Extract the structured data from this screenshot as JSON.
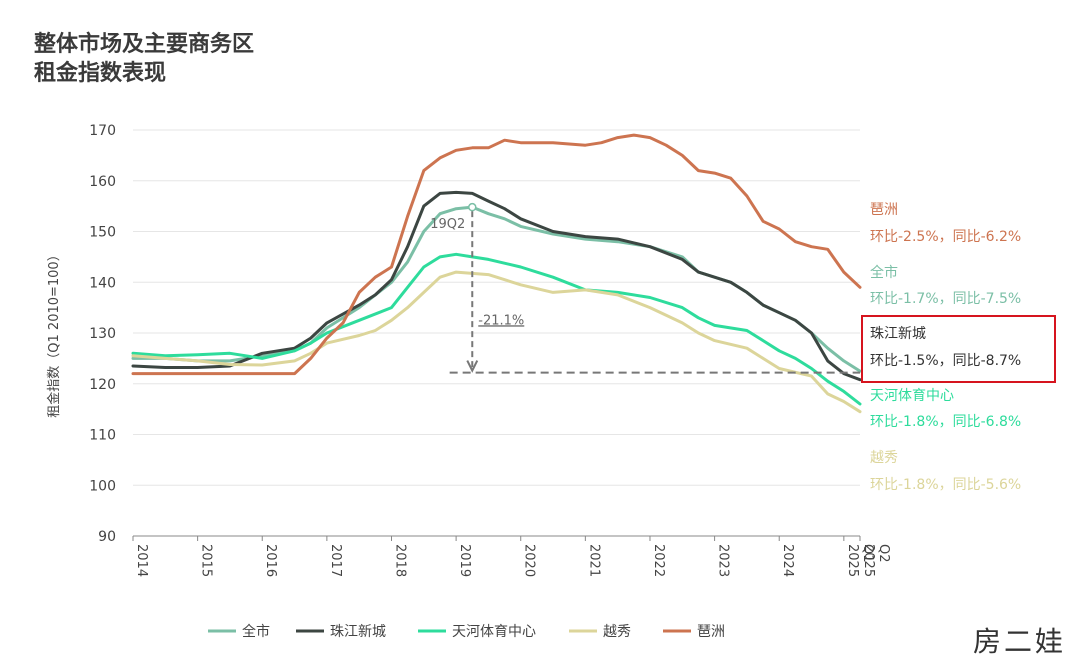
{
  "title_line1": "整体市场及主要商务区",
  "title_line2": "租金指数表现",
  "watermark": "房二娃",
  "colors": {
    "quanshi": "#7bbfa6",
    "zhujiang": "#3c4642",
    "tianhe": "#2edc9c",
    "yuexiu": "#dcd59a",
    "pazhou": "#cd7450",
    "grid": "#e6e6e6",
    "axis": "#666666",
    "highlight": "#d6141e"
  },
  "chart_data": {
    "type": "line",
    "title": "整体市场及主要商务区租金指数表现",
    "ylabel": "租金指数（Q1 2010=100）",
    "ylim": [
      90,
      170
    ],
    "yticks": [
      90,
      100,
      110,
      120,
      130,
      140,
      150,
      160,
      170
    ],
    "x_tick_labels": [
      "2014",
      "2015",
      "2016",
      "2017",
      "2018",
      "2019",
      "2020",
      "2021",
      "2022",
      "2023",
      "2024",
      "2025 Q1",
      "2025 Q2"
    ],
    "x_tick_positions": [
      2014,
      2015,
      2016,
      2017,
      2018,
      2019,
      2020,
      2021,
      2022,
      2023,
      2024,
      2025.0,
      2025.25
    ],
    "xlim": [
      2014,
      2025.25
    ],
    "grid": "horizontal",
    "legend": "bottom-center",
    "series": [
      {
        "name": "全市",
        "color_key": "quanshi",
        "points": [
          [
            2014,
            125
          ],
          [
            2014.5,
            125
          ],
          [
            2015,
            124.5
          ],
          [
            2015.5,
            124.5
          ],
          [
            2016,
            125.5
          ],
          [
            2016.5,
            126.5
          ],
          [
            2016.75,
            128
          ],
          [
            2017,
            131
          ],
          [
            2017.5,
            135
          ],
          [
            2017.75,
            137.5
          ],
          [
            2018,
            140
          ],
          [
            2018.25,
            144
          ],
          [
            2018.5,
            150
          ],
          [
            2018.75,
            153.5
          ],
          [
            2019,
            154.5
          ],
          [
            2019.25,
            154.8
          ],
          [
            2019.5,
            153.5
          ],
          [
            2019.75,
            152.5
          ],
          [
            2020,
            151
          ],
          [
            2020.5,
            149.5
          ],
          [
            2021,
            148.5
          ],
          [
            2021.5,
            148
          ],
          [
            2022,
            147
          ],
          [
            2022.5,
            145
          ],
          [
            2022.75,
            142
          ],
          [
            2023,
            141
          ],
          [
            2023.25,
            140
          ],
          [
            2023.5,
            138
          ],
          [
            2023.75,
            135.5
          ],
          [
            2024,
            134
          ],
          [
            2024.25,
            132.5
          ],
          [
            2024.5,
            130
          ],
          [
            2024.75,
            127
          ],
          [
            2025,
            124.5
          ],
          [
            2025.25,
            122.5
          ]
        ]
      },
      {
        "name": "珠江新城",
        "color_key": "zhujiang",
        "points": [
          [
            2014,
            123.5
          ],
          [
            2014.5,
            123.2
          ],
          [
            2015,
            123.2
          ],
          [
            2015.5,
            123.5
          ],
          [
            2016,
            126
          ],
          [
            2016.5,
            127
          ],
          [
            2016.75,
            129
          ],
          [
            2017,
            132
          ],
          [
            2017.5,
            135.5
          ],
          [
            2017.75,
            137.5
          ],
          [
            2018,
            140.5
          ],
          [
            2018.25,
            147
          ],
          [
            2018.5,
            155
          ],
          [
            2018.75,
            157.5
          ],
          [
            2019,
            157.7
          ],
          [
            2019.25,
            157.5
          ],
          [
            2019.5,
            156
          ],
          [
            2019.75,
            154.5
          ],
          [
            2020,
            152.5
          ],
          [
            2020.5,
            150
          ],
          [
            2021,
            149
          ],
          [
            2021.5,
            148.5
          ],
          [
            2022,
            147
          ],
          [
            2022.5,
            144.5
          ],
          [
            2022.75,
            142
          ],
          [
            2023,
            141
          ],
          [
            2023.25,
            140
          ],
          [
            2023.5,
            138
          ],
          [
            2023.75,
            135.5
          ],
          [
            2024,
            134
          ],
          [
            2024.25,
            132.5
          ],
          [
            2024.5,
            130
          ],
          [
            2024.75,
            124.5
          ],
          [
            2025,
            122
          ],
          [
            2025.25,
            120.8
          ]
        ]
      },
      {
        "name": "天河体育中心",
        "color_key": "tianhe",
        "points": [
          [
            2014,
            126
          ],
          [
            2014.5,
            125.5
          ],
          [
            2015,
            125.7
          ],
          [
            2015.5,
            126
          ],
          [
            2016,
            125
          ],
          [
            2016.5,
            126.5
          ],
          [
            2016.75,
            128
          ],
          [
            2017,
            130
          ],
          [
            2017.5,
            132.5
          ],
          [
            2018,
            135
          ],
          [
            2018.25,
            139
          ],
          [
            2018.5,
            143
          ],
          [
            2018.75,
            145
          ],
          [
            2019,
            145.5
          ],
          [
            2019.25,
            145
          ],
          [
            2019.5,
            144.5
          ],
          [
            2020,
            143
          ],
          [
            2020.5,
            141
          ],
          [
            2021,
            138.5
          ],
          [
            2021.5,
            138
          ],
          [
            2022,
            137
          ],
          [
            2022.5,
            135
          ],
          [
            2022.75,
            133
          ],
          [
            2023,
            131.5
          ],
          [
            2023.5,
            130.5
          ],
          [
            2023.75,
            128.5
          ],
          [
            2024,
            126.5
          ],
          [
            2024.25,
            125
          ],
          [
            2024.5,
            123
          ],
          [
            2024.75,
            120.5
          ],
          [
            2025,
            118.5
          ],
          [
            2025.25,
            116
          ]
        ]
      },
      {
        "name": "越秀",
        "color_key": "yuexiu",
        "points": [
          [
            2014,
            125.5
          ],
          [
            2014.5,
            125
          ],
          [
            2015,
            124.5
          ],
          [
            2015.5,
            123.8
          ],
          [
            2016,
            123.7
          ],
          [
            2016.5,
            124.5
          ],
          [
            2016.75,
            126
          ],
          [
            2017,
            128
          ],
          [
            2017.5,
            129.5
          ],
          [
            2017.75,
            130.5
          ],
          [
            2018,
            132.5
          ],
          [
            2018.25,
            135
          ],
          [
            2018.5,
            138
          ],
          [
            2018.75,
            141
          ],
          [
            2019,
            142
          ],
          [
            2019.5,
            141.5
          ],
          [
            2020,
            139.5
          ],
          [
            2020.5,
            138
          ],
          [
            2021,
            138.5
          ],
          [
            2021.5,
            137.5
          ],
          [
            2022,
            135
          ],
          [
            2022.5,
            132
          ],
          [
            2022.75,
            130
          ],
          [
            2023,
            128.5
          ],
          [
            2023.5,
            127
          ],
          [
            2023.75,
            125
          ],
          [
            2024,
            123
          ],
          [
            2024.5,
            121.5
          ],
          [
            2024.75,
            118
          ],
          [
            2025,
            116.5
          ],
          [
            2025.25,
            114.5
          ]
        ]
      },
      {
        "name": "琶洲",
        "color_key": "pazhou",
        "points": [
          [
            2014,
            122
          ],
          [
            2014.5,
            122
          ],
          [
            2015,
            122
          ],
          [
            2015.5,
            122
          ],
          [
            2016,
            122
          ],
          [
            2016.5,
            122
          ],
          [
            2016.75,
            125
          ],
          [
            2017,
            129
          ],
          [
            2017.25,
            132
          ],
          [
            2017.5,
            138
          ],
          [
            2017.75,
            141
          ],
          [
            2018,
            143
          ],
          [
            2018.25,
            153
          ],
          [
            2018.5,
            162
          ],
          [
            2018.75,
            164.5
          ],
          [
            2019,
            166
          ],
          [
            2019.25,
            166.5
          ],
          [
            2019.5,
            166.5
          ],
          [
            2019.75,
            168
          ],
          [
            2020,
            167.5
          ],
          [
            2020.5,
            167.5
          ],
          [
            2021,
            167
          ],
          [
            2021.25,
            167.5
          ],
          [
            2021.5,
            168.5
          ],
          [
            2021.75,
            169
          ],
          [
            2022,
            168.5
          ],
          [
            2022.25,
            167
          ],
          [
            2022.5,
            165
          ],
          [
            2022.75,
            162
          ],
          [
            2023,
            161.5
          ],
          [
            2023.25,
            160.5
          ],
          [
            2023.5,
            157
          ],
          [
            2023.75,
            152
          ],
          [
            2024,
            150.5
          ],
          [
            2024.25,
            148
          ],
          [
            2024.5,
            147
          ],
          [
            2024.75,
            146.5
          ],
          [
            2025,
            142
          ],
          [
            2025.25,
            139
          ]
        ]
      }
    ],
    "annotations": {
      "peak_label": "19Q2",
      "peak_point": [
        2019.25,
        154.8
      ],
      "drop_label": "-21.1%",
      "reference_y": 122.2,
      "reference_x_start": 2018.9
    }
  },
  "side_labels": [
    {
      "key": "pazhou",
      "name": "琶洲",
      "change": "环比-2.5%，同比-6.2%",
      "highlight": false
    },
    {
      "key": "quanshi",
      "name": "全市",
      "change": "环比-1.7%，同比-7.5%",
      "highlight": false
    },
    {
      "key": "zhujiang",
      "name": "珠江新城",
      "change": "环比-1.5%，同比-8.7%",
      "highlight": true
    },
    {
      "key": "tianhe",
      "name": "天河体育中心",
      "change": "环比-1.8%，同比-6.8%",
      "highlight": false
    },
    {
      "key": "yuexiu",
      "name": "越秀",
      "change": "环比-1.8%，同比-5.6%",
      "highlight": false
    }
  ],
  "legend": [
    {
      "key": "quanshi",
      "label": "全市"
    },
    {
      "key": "zhujiang",
      "label": "珠江新城"
    },
    {
      "key": "tianhe",
      "label": "天河体育中心"
    },
    {
      "key": "yuexiu",
      "label": "越秀"
    },
    {
      "key": "pazhou",
      "label": "琶洲"
    }
  ]
}
